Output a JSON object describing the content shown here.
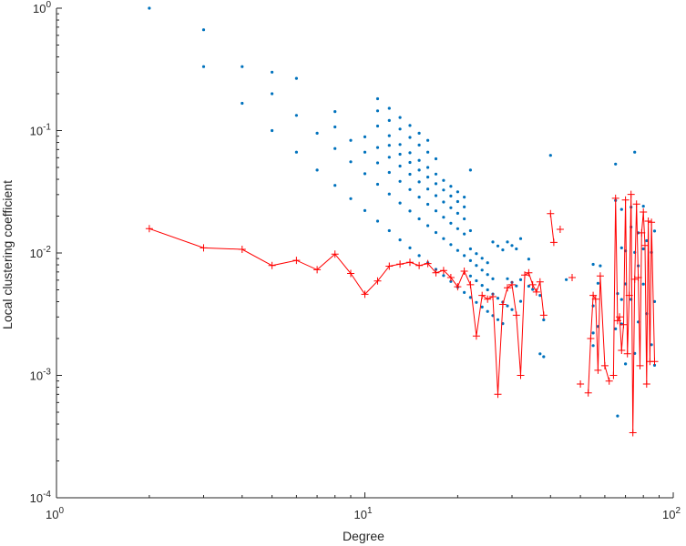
{
  "chart_data": {
    "type": "scatter",
    "xlabel": "Degree",
    "ylabel": "Local clustering coefficient",
    "xscale": "log",
    "yscale": "log",
    "xlim": [
      1,
      100
    ],
    "ylim": [
      0.0001,
      1
    ],
    "x_ticks": [
      {
        "base": "10",
        "exp": "0"
      },
      {
        "base": "10",
        "exp": "1"
      },
      {
        "base": "10",
        "exp": "2"
      }
    ],
    "y_ticks": [
      {
        "base": "10",
        "exp": "-4"
      },
      {
        "base": "10",
        "exp": "-3"
      },
      {
        "base": "10",
        "exp": "-2"
      },
      {
        "base": "10",
        "exp": "-1"
      },
      {
        "base": "10",
        "exp": "0"
      }
    ],
    "grid": false,
    "colors": {
      "scatter": "#0072BD",
      "line": "#FF0000",
      "axis": "#262626"
    },
    "series": [
      {
        "style": "dots",
        "points": [
          [
            2,
            1.0
          ],
          [
            3,
            0.667
          ],
          [
            3,
            0.333
          ],
          [
            4,
            0.333
          ],
          [
            4,
            0.167
          ],
          [
            5,
            0.3
          ],
          [
            5,
            0.2
          ],
          [
            5,
            0.1
          ],
          [
            6,
            0.267
          ],
          [
            6,
            0.133
          ],
          [
            6,
            0.0667
          ],
          [
            7,
            0.0952
          ],
          [
            7,
            0.0476
          ],
          [
            8,
            0.143
          ],
          [
            8,
            0.107
          ],
          [
            8,
            0.0714
          ],
          [
            8,
            0.0357
          ],
          [
            9,
            0.0833
          ],
          [
            9,
            0.0556
          ],
          [
            9,
            0.0278
          ],
          [
            10,
            0.0889
          ],
          [
            10,
            0.0667
          ],
          [
            10,
            0.0444
          ],
          [
            10,
            0.0222
          ],
          [
            11,
            0.182
          ],
          [
            11,
            0.145
          ],
          [
            11,
            0.109
          ],
          [
            11,
            0.0727
          ],
          [
            11,
            0.0545
          ],
          [
            11,
            0.0364
          ],
          [
            11,
            0.0182
          ],
          [
            12,
            0.152
          ],
          [
            12,
            0.121
          ],
          [
            12,
            0.0909
          ],
          [
            12,
            0.0758
          ],
          [
            12,
            0.0606
          ],
          [
            12,
            0.0455
          ],
          [
            12,
            0.0303
          ],
          [
            12,
            0.0152
          ],
          [
            13,
            0.128
          ],
          [
            13,
            0.103
          ],
          [
            13,
            0.0769
          ],
          [
            13,
            0.0641
          ],
          [
            13,
            0.0513
          ],
          [
            13,
            0.0385
          ],
          [
            13,
            0.0256
          ],
          [
            13,
            0.0128
          ],
          [
            14,
            0.11
          ],
          [
            14,
            0.0879
          ],
          [
            14,
            0.0659
          ],
          [
            14,
            0.0549
          ],
          [
            14,
            0.044
          ],
          [
            14,
            0.033
          ],
          [
            14,
            0.022
          ],
          [
            14,
            0.011
          ],
          [
            15,
            0.0952
          ],
          [
            15,
            0.0762
          ],
          [
            15,
            0.0571
          ],
          [
            15,
            0.0476
          ],
          [
            15,
            0.0381
          ],
          [
            15,
            0.0286
          ],
          [
            15,
            0.019
          ],
          [
            15,
            0.00952
          ],
          [
            16,
            0.0833
          ],
          [
            16,
            0.0667
          ],
          [
            16,
            0.05
          ],
          [
            16,
            0.0417
          ],
          [
            16,
            0.0333
          ],
          [
            16,
            0.025
          ],
          [
            16,
            0.0167
          ],
          [
            16,
            0.00833
          ],
          [
            17,
            0.0588
          ],
          [
            17,
            0.0441
          ],
          [
            17,
            0.0368
          ],
          [
            17,
            0.0294
          ],
          [
            17,
            0.0221
          ],
          [
            17,
            0.0147
          ],
          [
            17,
            0.00735
          ],
          [
            18,
            0.0392
          ],
          [
            18,
            0.0327
          ],
          [
            18,
            0.0261
          ],
          [
            18,
            0.0196
          ],
          [
            18,
            0.0131
          ],
          [
            18,
            0.00654
          ],
          [
            19,
            0.0351
          ],
          [
            19,
            0.0292
          ],
          [
            19,
            0.0234
          ],
          [
            19,
            0.0175
          ],
          [
            19,
            0.0117
          ],
          [
            19,
            0.00585
          ],
          [
            20,
            0.0316
          ],
          [
            20,
            0.0263
          ],
          [
            20,
            0.0211
          ],
          [
            20,
            0.0158
          ],
          [
            20,
            0.0105
          ],
          [
            20,
            0.00526
          ],
          [
            21,
            0.0286
          ],
          [
            21,
            0.0238
          ],
          [
            21,
            0.019
          ],
          [
            21,
            0.0143
          ],
          [
            21,
            0.00952
          ],
          [
            21,
            0.00476
          ],
          [
            22,
            0.0476
          ],
          [
            22,
            0.0152
          ],
          [
            22,
            0.0108
          ],
          [
            22,
            0.00866
          ],
          [
            22,
            0.00649
          ],
          [
            22,
            0.00433
          ],
          [
            23,
            0.00988
          ],
          [
            23,
            0.00791
          ],
          [
            23,
            0.00593
          ],
          [
            23,
            0.00395
          ],
          [
            24,
            0.00906
          ],
          [
            24,
            0.00725
          ],
          [
            24,
            0.00544
          ],
          [
            24,
            0.00362
          ],
          [
            25,
            0.00833
          ],
          [
            25,
            0.00667
          ],
          [
            25,
            0.005
          ],
          [
            25,
            0.00333
          ],
          [
            26,
            0.0123
          ],
          [
            26,
            0.00615
          ],
          [
            26,
            0.00462
          ],
          [
            26,
            0.00308
          ],
          [
            27,
            0.0114
          ],
          [
            27,
            0.00427
          ],
          [
            27,
            0.00285
          ],
          [
            28,
            0.0106
          ],
          [
            28,
            0.00397
          ],
          [
            28,
            0.00265
          ],
          [
            29,
            0.0123
          ],
          [
            29,
            0.00616
          ],
          [
            29,
            0.0037
          ],
          [
            30,
            0.0115
          ],
          [
            30,
            0.00575
          ],
          [
            30,
            0.00345
          ],
          [
            31,
            0.0108
          ],
          [
            31,
            0.00538
          ],
          [
            32,
            0.0131
          ],
          [
            32,
            0.00605
          ],
          [
            32,
            0.00403
          ],
          [
            34,
            0.00891
          ],
          [
            34,
            0.00535
          ],
          [
            35,
            0.00504
          ],
          [
            37,
            0.0045
          ],
          [
            37,
            0.0015
          ],
          [
            38,
            0.00284
          ],
          [
            38,
            0.00142
          ],
          [
            40,
            0.0628
          ],
          [
            45,
            0.00606
          ],
          [
            55,
            0.00808
          ],
          [
            55,
            0.0037
          ],
          [
            55,
            0.00222
          ],
          [
            55,
            0.00175
          ],
          [
            57,
            0.00565
          ],
          [
            57,
            0.00251
          ],
          [
            58,
            0.00786
          ],
          [
            65,
            0.0533
          ],
          [
            65,
            0.0269
          ],
          [
            65,
            0.0024
          ],
          [
            66,
            0.00466
          ],
          [
            66,
            0.000466
          ],
          [
            68,
            0.0227
          ],
          [
            68,
            0.011
          ],
          [
            68,
            0.00417
          ],
          [
            68,
            0.00263
          ],
          [
            70,
            0.0104
          ],
          [
            70,
            0.00559
          ],
          [
            70,
            0.00124
          ],
          [
            73,
            0.0237
          ],
          [
            73,
            0.0163
          ],
          [
            73,
            0.00418
          ],
          [
            75,
            0.0667
          ],
          [
            75,
            0.0101
          ],
          [
            75,
            0.00151
          ],
          [
            77,
            0.0146
          ],
          [
            77,
            0.00786
          ],
          [
            77,
            0.00273
          ],
          [
            80,
            0.0241
          ],
          [
            80,
            0.0108
          ],
          [
            80,
            0.00557
          ],
          [
            82,
            0.0126
          ],
          [
            82,
            0.00319
          ],
          [
            85,
            0.0101
          ],
          [
            85,
            0.00178
          ],
          [
            87,
            0.0151
          ],
          [
            87,
            0.00401
          ],
          [
            87,
            0.00121
          ]
        ]
      },
      {
        "style": "line-plus",
        "segments": [
          [
            [
              2,
              0.0158
            ],
            [
              3,
              0.011
            ],
            [
              4,
              0.0107
            ],
            [
              5,
              0.0079
            ],
            [
              6,
              0.0087
            ],
            [
              7,
              0.0073
            ],
            [
              8,
              0.0098
            ],
            [
              9,
              0.0068
            ],
            [
              10,
              0.0046
            ],
            [
              11,
              0.0059
            ],
            [
              12,
              0.0078
            ],
            [
              13,
              0.0081
            ],
            [
              14,
              0.0084
            ],
            [
              15,
              0.0079
            ],
            [
              16,
              0.0082
            ],
            [
              17,
              0.0069
            ],
            [
              18,
              0.0072
            ],
            [
              19,
              0.0063
            ],
            [
              20,
              0.0053
            ],
            [
              21,
              0.0071
            ],
            [
              22,
              0.0055
            ],
            [
              23,
              0.0021
            ],
            [
              24,
              0.0045
            ],
            [
              25,
              0.0042
            ],
            [
              26,
              0.0044
            ],
            [
              27,
              0.0007
            ],
            [
              28,
              0.0038
            ],
            [
              29,
              0.0052
            ],
            [
              30,
              0.0055
            ],
            [
              31,
              0.0031
            ],
            [
              32,
              0.001
            ],
            [
              33,
              0.0066
            ],
            [
              34,
              0.0069
            ],
            [
              35,
              0.0055
            ],
            [
              36,
              0.0048
            ],
            [
              37,
              0.0058
            ],
            [
              38,
              0.0031
            ]
          ],
          [
            [
              40,
              0.021
            ],
            [
              41,
              0.0122
            ]
          ],
          [
            [
              43,
              0.0156
            ]
          ],
          [
            [
              47,
              0.0063
            ]
          ],
          [
            [
              50,
              0.00085
            ]
          ],
          [
            [
              53,
              0.00072
            ],
            [
              54,
              0.002
            ],
            [
              55,
              0.0045
            ],
            [
              56,
              0.0042
            ],
            [
              57,
              0.0011
            ],
            [
              58,
              0.0065
            ],
            [
              60,
              0.0012
            ],
            [
              62,
              0.0009
            ]
          ],
          [
            [
              64,
              0.001
            ],
            [
              65,
              0.028
            ],
            [
              66,
              0.0028
            ],
            [
              67,
              0.003
            ],
            [
              68,
              0.0016
            ],
            [
              69,
              0.0026
            ],
            [
              70,
              0.0271
            ],
            [
              71,
              0.0015
            ],
            [
              72,
              0.0045
            ],
            [
              73,
              0.0301
            ],
            [
              74,
              0.00034
            ],
            [
              75,
              0.0061
            ],
            [
              76,
              0.0251
            ],
            [
              77,
              0.0063
            ],
            [
              78,
              0.0012
            ],
            [
              79,
              0.0146
            ],
            [
              80,
              0.0216
            ],
            [
              81,
              0.0115
            ],
            [
              82,
              0.00085
            ],
            [
              83,
              0.0182
            ],
            [
              84,
              0.0013
            ],
            [
              85,
              0.0178
            ],
            [
              87,
              0.0013
            ]
          ]
        ]
      }
    ]
  }
}
